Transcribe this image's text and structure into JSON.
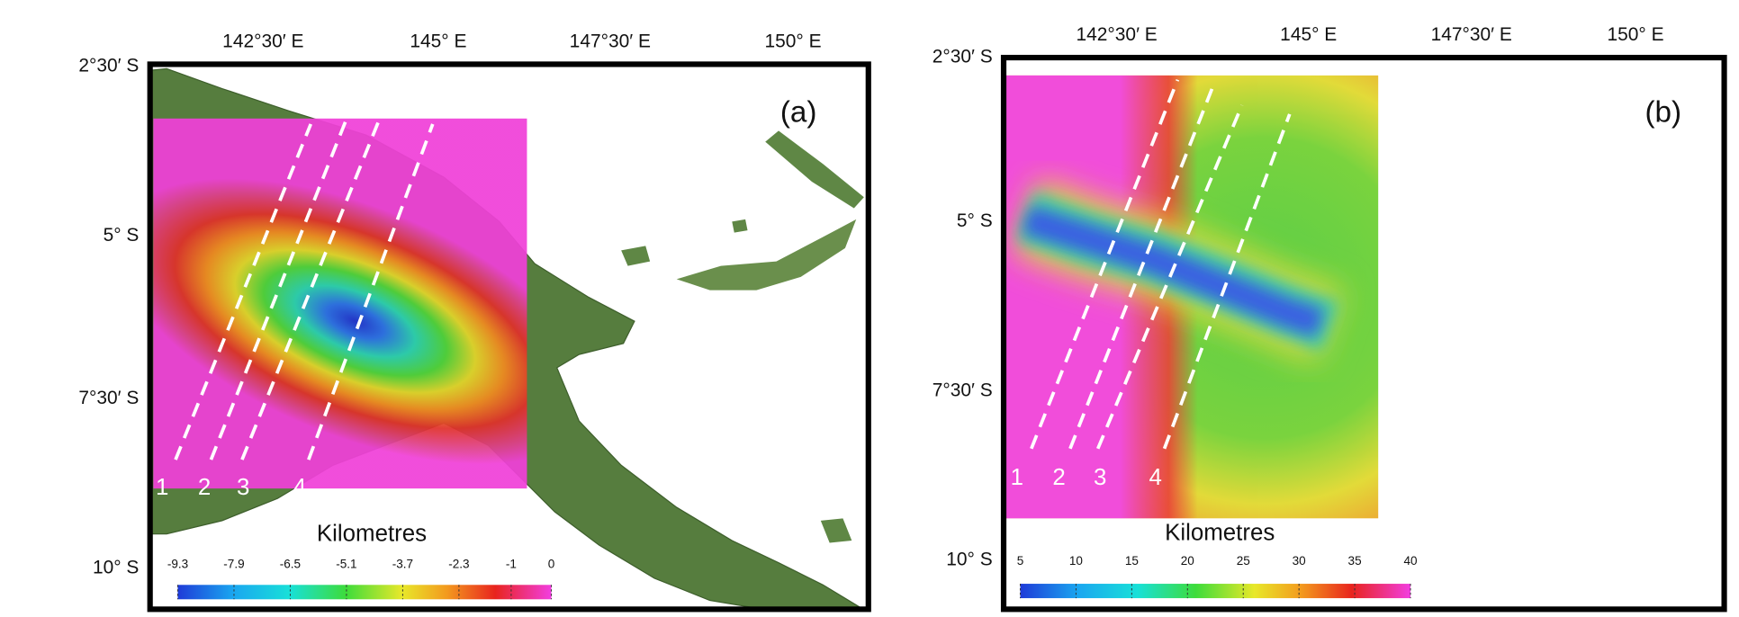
{
  "panels": [
    {
      "label": "(a)",
      "lon_labels": [
        "142°30′ E",
        "145° E",
        "147°30′ E",
        "150° E"
      ],
      "lat_labels": [
        "2°30′ S",
        "5° S",
        "7°30′ S",
        "10° S"
      ],
      "profiles": [
        "1",
        "2",
        "3",
        "4"
      ],
      "colorbar": {
        "label": "Kilometres",
        "ticks": [
          -9.3,
          -7.9,
          -6.5,
          -5.1,
          -3.7,
          -2.3,
          -1,
          0
        ]
      }
    },
    {
      "label": "(b)",
      "lon_labels": [
        "142°30′ E",
        "145° E",
        "147°30′ E",
        "150° E"
      ],
      "lat_labels": [
        "2°30′ S",
        "5° S",
        "7°30′ S",
        "10° S"
      ],
      "profiles": [
        "1",
        "2",
        "3",
        "4"
      ],
      "colorbar": {
        "label": "Kilometres",
        "ticks": [
          5,
          10,
          15,
          20,
          25,
          30,
          35,
          40
        ]
      }
    }
  ]
}
